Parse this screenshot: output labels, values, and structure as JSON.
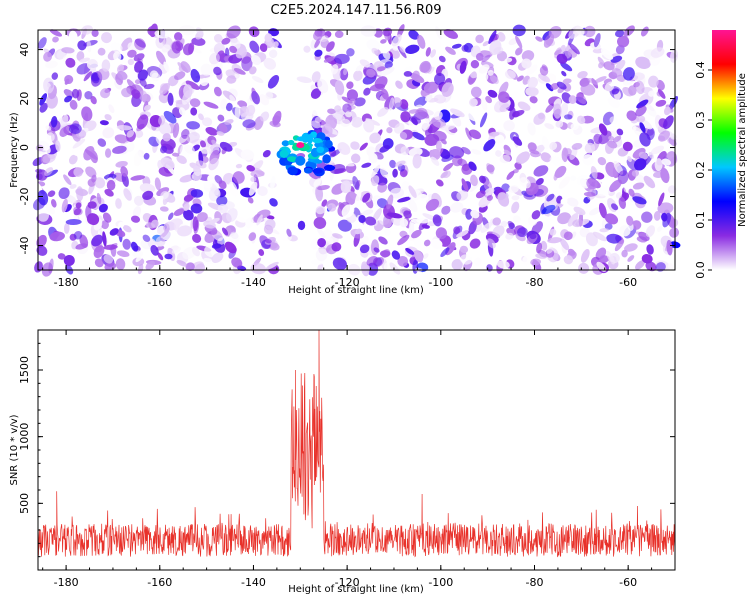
{
  "title": "C2E5.2024.147.11.56.R09",
  "chart_data": [
    {
      "type": "heatmap",
      "xlabel": "Height of straight line (km)",
      "ylabel": "Frequency (Hz)",
      "xlim": [
        -186,
        -50
      ],
      "ylim": [
        -50,
        48
      ],
      "xticks": [
        -180,
        -160,
        -140,
        -120,
        -100,
        -80,
        -60
      ],
      "yticks": [
        -40,
        -20,
        0,
        20,
        40
      ],
      "colorbar": {
        "label": "Normalized spectral amplitude",
        "range": [
          0.0,
          0.48
        ],
        "ticks": [
          0.0,
          0.1,
          0.2,
          0.3,
          0.4
        ],
        "colormap": [
          "#ffffff",
          "#8a2be2",
          "#0000ff",
          "#00c8ff",
          "#00ff00",
          "#ffff00",
          "#ff0000",
          "#ff1493"
        ]
      },
      "features": {
        "gap_x_range": [
          -135,
          -127
        ],
        "signal_center_x": -130,
        "signal_center_y": 0,
        "signal_peak": 0.48
      }
    },
    {
      "type": "line",
      "xlabel": "Height of straight line (km)",
      "ylabel": "SNR (10 * v/v)",
      "xlim": [
        -186,
        -50
      ],
      "ylim": [
        0,
        1800
      ],
      "xticks": [
        -180,
        -160,
        -140,
        -120,
        -100,
        -80,
        -60
      ],
      "yticks": [
        500,
        1000,
        1500
      ],
      "color": "#e8312a",
      "baseline_range": [
        100,
        350
      ],
      "peak": {
        "x": -126,
        "y": 1800
      },
      "notable": [
        {
          "x": -131,
          "y": 1500
        },
        {
          "x": -127,
          "y": 1450
        },
        {
          "x": -182,
          "y": 590
        },
        {
          "x": -104,
          "y": 570
        },
        {
          "x": -58,
          "y": 480
        }
      ]
    }
  ]
}
